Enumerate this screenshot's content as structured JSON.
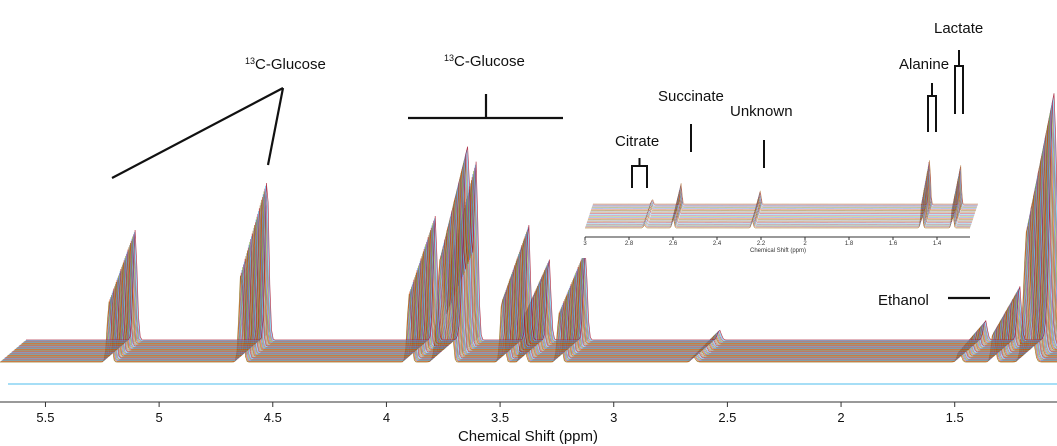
{
  "chart_data": [
    {
      "type": "line",
      "xlabel": "Chemical Shift (ppm)",
      "ylabel": "",
      "x_reversed": true,
      "xlim": [
        5.7,
        1.05
      ],
      "xticks": [
        5.5,
        5,
        4.5,
        4,
        3.5,
        3,
        2.5,
        2,
        1.5
      ],
      "xtick_labels": [
        "5.5",
        "5",
        "4.5",
        "4",
        "3.5",
        "3",
        "2.5",
        "2",
        "1.5"
      ],
      "peaks": [
        {
          "name": "13C-Glucose satellite",
          "x": 5.22,
          "height": 0.55
        },
        {
          "name": "13C-Glucose satellite",
          "x": 4.64,
          "height": 0.82
        },
        {
          "name": "glucose",
          "x": 3.9,
          "height": 0.62
        },
        {
          "name": "glucose",
          "x": 3.76,
          "height": 0.98
        },
        {
          "name": "glucose",
          "x": 3.72,
          "height": 0.86
        },
        {
          "name": "glucose",
          "x": 3.49,
          "height": 0.6
        },
        {
          "name": "glucose",
          "x": 3.4,
          "height": 0.42
        },
        {
          "name": "glucose",
          "x": 3.24,
          "height": 0.45
        },
        {
          "name": "Succinate",
          "x": 2.65,
          "height": 0.05
        },
        {
          "name": "Alanine",
          "x": 1.48,
          "height": 0.1
        },
        {
          "name": "Lactate",
          "x": 1.33,
          "height": 0.28
        },
        {
          "name": "Ethanol",
          "x": 1.18,
          "height": 1.25
        }
      ],
      "annotations": [
        {
          "text_prefix": "13",
          "text": "C-Glucose",
          "target_ppm": [
            5.22,
            4.64
          ]
        },
        {
          "text_prefix": "13",
          "text": "C-Glucose",
          "target_ppm": [
            3.95,
            3.25
          ]
        },
        {
          "text": "Ethanol",
          "target_ppm": 1.18
        }
      ]
    },
    {
      "type": "line",
      "role": "inset",
      "xlabel": "Chemical Shift (ppm)",
      "x_reversed": true,
      "xlim": [
        3.0,
        1.25
      ],
      "xticks": [
        3,
        2.8,
        2.6,
        2.4,
        2.2,
        2,
        1.8,
        1.6,
        1.4
      ],
      "xtick_labels": [
        "3",
        "2.8",
        "2.6",
        "2.4",
        "2.2",
        "2",
        "1.8",
        "1.6",
        "1.4"
      ],
      "peaks": [
        {
          "name": "Citrate",
          "x": 2.73,
          "height": 0.08
        },
        {
          "name": "Succinate",
          "x": 2.6,
          "height": 0.35
        },
        {
          "name": "Unknown",
          "x": 2.24,
          "height": 0.22
        },
        {
          "name": "Alanine",
          "x": 1.47,
          "height": 0.75
        },
        {
          "name": "Lactate",
          "x": 1.33,
          "height": 0.7
        }
      ],
      "annotations": [
        {
          "text": "Citrate",
          "bracket": true
        },
        {
          "text": "Succinate",
          "bracket": false
        },
        {
          "text": "Unknown",
          "bracket": false
        },
        {
          "text": "Alanine",
          "bracket": true
        },
        {
          "text": "Lactate",
          "bracket": true
        }
      ]
    }
  ],
  "colors": {
    "spectra": [
      "#7f5f00",
      "#d95319",
      "#4d6bd6",
      "#77ac30",
      "#a3407f",
      "#4dbeee",
      "#a2142f",
      "#b07a40",
      "#8c8c8c"
    ],
    "baseline": "#4dbeee",
    "annotation": "#111111",
    "axis": "#333333"
  }
}
